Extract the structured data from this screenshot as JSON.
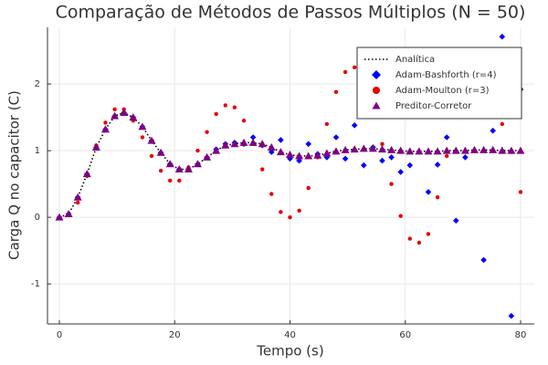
{
  "chart_data": {
    "type": "scatter",
    "title": "Comparação de Métodos de Passos Múltiplos (N = 50)",
    "x_label": "Tempo (s)",
    "y_label": "Carga Q no capacitor (C)",
    "x": [
      0,
      1.6,
      3.2,
      4.8,
      6.4,
      8,
      9.6,
      11.2,
      12.8,
      14.4,
      16,
      17.6,
      19.2,
      20.8,
      22.4,
      24,
      25.6,
      27.2,
      28.8,
      30.4,
      32,
      33.6,
      35.2,
      36.8,
      38.4,
      40,
      41.6,
      43.2,
      44.8,
      46.4,
      48,
      49.6,
      51.2,
      52.8,
      54.4,
      56,
      57.6,
      59.2,
      60.8,
      62.4,
      64,
      65.6,
      67.2,
      68.8,
      70.4,
      72,
      73.6,
      75.2,
      76.8,
      78.4,
      80
    ],
    "series": [
      {
        "name": "Analítica",
        "color": "#000000",
        "style": "dotted",
        "values": [
          0,
          0.05,
          0.3,
          0.65,
          1.05,
          1.32,
          1.52,
          1.57,
          1.5,
          1.36,
          1.15,
          0.97,
          0.8,
          0.72,
          0.72,
          0.8,
          0.9,
          1.0,
          1.08,
          1.1,
          1.12,
          1.12,
          1.1,
          1.05,
          0.98,
          0.94,
          0.92,
          0.92,
          0.93,
          0.96,
          0.99,
          1.01,
          1.02,
          1.03,
          1.03,
          1.02,
          1.01,
          1.0,
          0.99,
          0.99,
          0.99,
          0.99,
          1.0,
          1.0,
          1.0,
          1.01,
          1.01,
          1.01,
          1.0,
          1.0,
          1.0
        ]
      },
      {
        "name": "Adam-Bashforth (r=4)",
        "color": "#0000ff",
        "marker": "diamond",
        "values": [
          0,
          0.05,
          0.3,
          0.65,
          1.05,
          1.32,
          1.52,
          1.57,
          1.5,
          1.36,
          1.15,
          0.97,
          0.8,
          0.72,
          0.72,
          0.8,
          0.9,
          1.02,
          1.1,
          1.12,
          1.1,
          1.2,
          1.08,
          0.98,
          1.16,
          0.88,
          0.85,
          1.1,
          0.95,
          0.9,
          1.2,
          0.88,
          1.38,
          0.78,
          1.05,
          0.85,
          0.9,
          0.68,
          0.78,
          1.72,
          0.38,
          0.79,
          1.2,
          -0.05,
          0.9,
          2.48,
          -0.64,
          1.3,
          2.71,
          -1.48,
          1.92
        ]
      },
      {
        "name": "Adam-Moulton (r=3)",
        "color": "#e60000",
        "marker": "circle",
        "values": [
          0,
          0.03,
          0.22,
          0.62,
          1.08,
          1.42,
          1.62,
          1.62,
          1.45,
          1.2,
          0.92,
          0.7,
          0.55,
          0.55,
          0.75,
          1.0,
          1.28,
          1.55,
          1.68,
          1.65,
          1.45,
          1.1,
          0.72,
          0.35,
          0.08,
          0.0,
          0.1,
          0.44,
          0.9,
          1.4,
          1.88,
          2.18,
          2.25,
          2.2,
          1.6,
          1.1,
          0.5,
          0.02,
          -0.32,
          -0.38,
          -0.25,
          0.3,
          0.92,
          1.55,
          1.95,
          2.35,
          2.45,
          2.0,
          1.4,
          0.98,
          0.38
        ]
      },
      {
        "name": "Preditor-Corretor",
        "color": "#800080",
        "marker": "triangle",
        "values": [
          0,
          0.05,
          0.3,
          0.65,
          1.05,
          1.32,
          1.52,
          1.57,
          1.5,
          1.36,
          1.15,
          0.97,
          0.8,
          0.72,
          0.72,
          0.8,
          0.9,
          1.0,
          1.08,
          1.1,
          1.12,
          1.12,
          1.1,
          1.05,
          0.98,
          0.94,
          0.92,
          0.92,
          0.93,
          0.96,
          0.99,
          1.01,
          1.02,
          1.03,
          1.03,
          1.02,
          1.01,
          1.0,
          0.99,
          0.99,
          0.99,
          0.99,
          1.0,
          1.0,
          1.0,
          1.01,
          1.01,
          1.01,
          1.0,
          1.0,
          1.0
        ]
      }
    ],
    "xlim": [
      -2.06,
      82.38
    ],
    "ylim": [
      -1.6,
      2.85
    ],
    "xticks": [
      0,
      20,
      40,
      60,
      80
    ],
    "yticks": [
      -1,
      0,
      1,
      2
    ],
    "grid": true,
    "legend": "top-right"
  }
}
